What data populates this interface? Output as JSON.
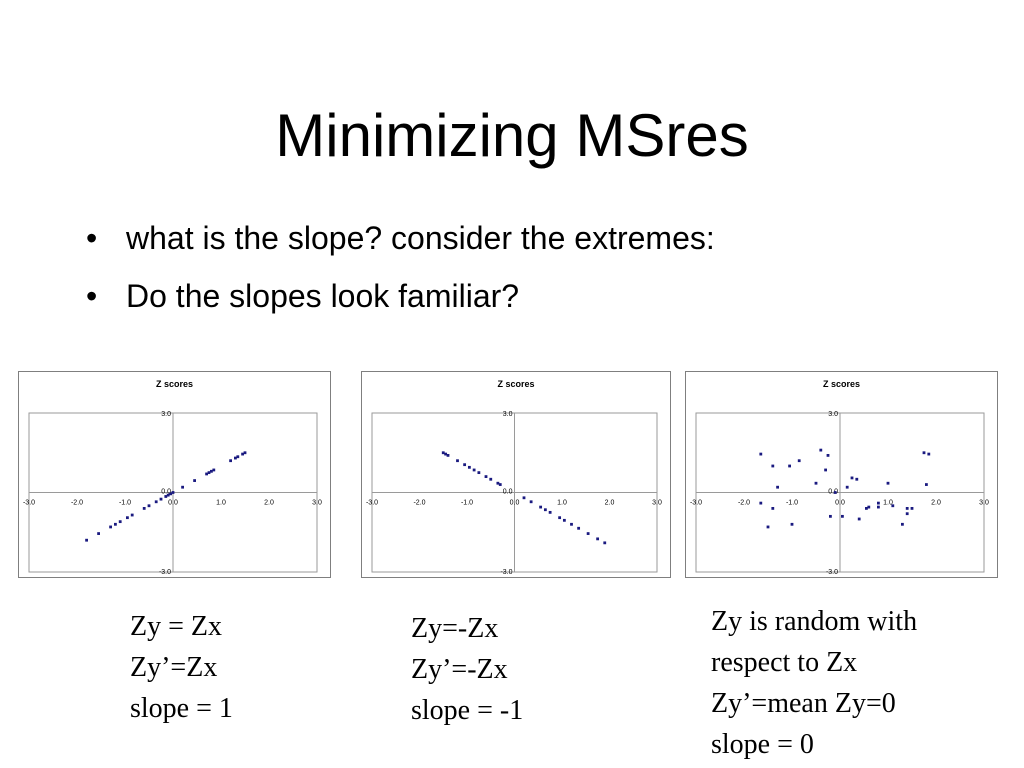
{
  "title": "Minimizing MSres",
  "bullets": [
    "what is the slope? consider the extremes:",
    "Do the slopes look familiar?"
  ],
  "bullet_glyph": "•",
  "point_color": "#1a1a80",
  "chart_data": [
    {
      "type": "scatter",
      "title": "Z scores",
      "xlim": [
        -3,
        3
      ],
      "ylim": [
        -3,
        3
      ],
      "xticks": [
        "-3.0",
        "-2.0",
        "-1.0",
        "0.0",
        "1.0",
        "2.0",
        "3.0"
      ],
      "yticks": [
        "3.0",
        "0.0",
        "-3.0"
      ],
      "grid": false,
      "legend": "none",
      "points": [
        [
          -1.8,
          -1.8
        ],
        [
          -1.55,
          -1.55
        ],
        [
          -1.3,
          -1.3
        ],
        [
          -1.2,
          -1.2
        ],
        [
          -1.1,
          -1.1
        ],
        [
          -0.95,
          -0.95
        ],
        [
          -0.85,
          -0.85
        ],
        [
          -0.6,
          -0.6
        ],
        [
          -0.5,
          -0.5
        ],
        [
          -0.35,
          -0.35
        ],
        [
          -0.25,
          -0.25
        ],
        [
          -0.15,
          -0.15
        ],
        [
          -0.1,
          -0.1
        ],
        [
          -0.05,
          -0.05
        ],
        [
          0.0,
          0.0
        ],
        [
          0.2,
          0.2
        ],
        [
          0.45,
          0.45
        ],
        [
          0.7,
          0.7
        ],
        [
          0.75,
          0.75
        ],
        [
          0.8,
          0.8
        ],
        [
          0.85,
          0.85
        ],
        [
          1.2,
          1.2
        ],
        [
          1.3,
          1.3
        ],
        [
          1.35,
          1.35
        ],
        [
          1.45,
          1.45
        ],
        [
          1.5,
          1.5
        ]
      ]
    },
    {
      "type": "scatter",
      "title": "Z scores",
      "xlim": [
        -3,
        3
      ],
      "ylim": [
        -3,
        3
      ],
      "xticks": [
        "-3.0",
        "-2.0",
        "-1.0",
        "0.0",
        "1.0",
        "2.0",
        "3.0"
      ],
      "yticks": [
        "3.0",
        "0.0",
        "-3.0"
      ],
      "grid": false,
      "legend": "none",
      "points": [
        [
          -1.5,
          1.5
        ],
        [
          -1.45,
          1.45
        ],
        [
          -1.4,
          1.4
        ],
        [
          -1.2,
          1.2
        ],
        [
          -1.05,
          1.05
        ],
        [
          -0.95,
          0.95
        ],
        [
          -0.85,
          0.85
        ],
        [
          -0.75,
          0.75
        ],
        [
          -0.6,
          0.6
        ],
        [
          -0.5,
          0.5
        ],
        [
          -0.35,
          0.35
        ],
        [
          -0.3,
          0.3
        ],
        [
          0.2,
          -0.2
        ],
        [
          0.35,
          -0.35
        ],
        [
          0.55,
          -0.55
        ],
        [
          0.65,
          -0.65
        ],
        [
          0.75,
          -0.75
        ],
        [
          0.95,
          -0.95
        ],
        [
          1.05,
          -1.05
        ],
        [
          1.2,
          -1.2
        ],
        [
          1.35,
          -1.35
        ],
        [
          1.55,
          -1.55
        ],
        [
          1.75,
          -1.75
        ],
        [
          1.9,
          -1.9
        ]
      ]
    },
    {
      "type": "scatter",
      "title": "Z scores",
      "xlim": [
        -3,
        3
      ],
      "ylim": [
        -3,
        3
      ],
      "xticks": [
        "-3.0",
        "-2.0",
        "-1.0",
        "0.0",
        "1.0",
        "2.0",
        "3.0"
      ],
      "yticks": [
        "3.0",
        "0.0",
        "-3.0"
      ],
      "grid": false,
      "legend": "none",
      "points": [
        [
          -1.65,
          1.45
        ],
        [
          -1.4,
          1.0
        ],
        [
          -1.3,
          0.2
        ],
        [
          -1.05,
          1.0
        ],
        [
          -0.85,
          1.2
        ],
        [
          -0.5,
          0.35
        ],
        [
          -0.4,
          1.6
        ],
        [
          -0.3,
          0.85
        ],
        [
          -0.25,
          1.4
        ],
        [
          -0.2,
          -0.9
        ],
        [
          -0.1,
          0.0
        ],
        [
          0.05,
          -0.9
        ],
        [
          0.15,
          0.2
        ],
        [
          0.25,
          0.55
        ],
        [
          0.35,
          0.5
        ],
        [
          0.4,
          -1.0
        ],
        [
          0.55,
          -0.6
        ],
        [
          0.6,
          -0.55
        ],
        [
          0.8,
          -0.4
        ],
        [
          0.8,
          -0.55
        ],
        [
          1.0,
          0.35
        ],
        [
          1.1,
          -0.5
        ],
        [
          1.3,
          -1.2
        ],
        [
          1.4,
          -0.6
        ],
        [
          1.4,
          -0.8
        ],
        [
          1.5,
          -0.6
        ],
        [
          1.75,
          1.5
        ],
        [
          1.85,
          1.45
        ],
        [
          1.8,
          0.3
        ],
        [
          -1.0,
          -1.2
        ],
        [
          -1.5,
          -1.3
        ],
        [
          -1.65,
          -0.4
        ],
        [
          -1.4,
          -0.6
        ]
      ]
    }
  ],
  "captions": [
    [
      "Zy = Zx",
      "Zy’=Zx",
      "slope = 1"
    ],
    [
      "Zy=-Zx",
      "Zy’=-Zx",
      "slope = -1"
    ],
    [
      "Zy is random with",
      "respect to Zx",
      "Zy’=mean Zy=0",
      "slope = 0"
    ]
  ]
}
